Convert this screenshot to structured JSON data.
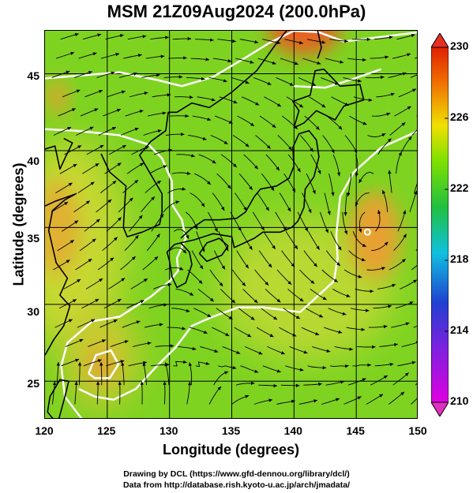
{
  "title": "MSM 21Z09Aug2024 (200.0hPa)",
  "axes": {
    "xlabel": "Longitude (degrees)",
    "ylabel": "Latitude  (degrees)",
    "xticks": [
      "120",
      "125",
      "130",
      "135",
      "140",
      "145",
      "150"
    ],
    "yticks": [
      "25",
      "30",
      "35",
      "40",
      "45"
    ]
  },
  "colorbar": {
    "labels": [
      "230",
      "226",
      "222",
      "218",
      "214",
      "210"
    ],
    "range": [
      210,
      230
    ],
    "colors": [
      "#e000e0",
      "#2040d0",
      "#10c0e0",
      "#20c040",
      "#80e000",
      "#f0e000",
      "#f07000",
      "#e02000"
    ]
  },
  "map": {
    "lon_range": [
      120,
      150
    ],
    "lat_range": [
      22.5,
      47.8
    ],
    "field": "temperature with streamlines",
    "background_color": "#7ed321",
    "warm_color": "#e8a030",
    "contour_color": "#ffffff",
    "coast_color": "#000000"
  },
  "credits": {
    "line1": "Drawing by DCL (https://www.gfd-dennou.org/library/dcl/)",
    "line2": "Data from http://database.rish.kyoto-u.ac.jp/arch/jmadata/"
  }
}
